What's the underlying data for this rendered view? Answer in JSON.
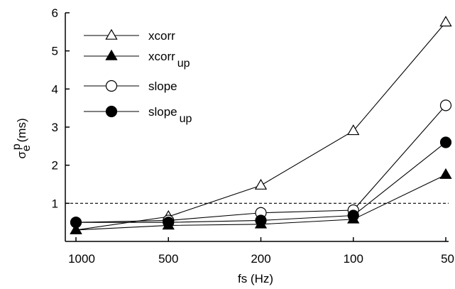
{
  "chart_data": {
    "type": "line",
    "x_axis": {
      "label": "fs (Hz)",
      "tick_labels": [
        "1000",
        "500",
        "200",
        "100",
        "50"
      ]
    },
    "y_axis": {
      "label_main": "σ",
      "label_sub": "e",
      "label_sup": "p",
      "label_unit": "(ms)",
      "tick_labels": [
        "1",
        "2",
        "3",
        "4",
        "5",
        "6"
      ],
      "ylim": [
        0,
        6
      ]
    },
    "x": [
      1000,
      500,
      200,
      100,
      50
    ],
    "reference_line": {
      "y": 1,
      "style": "dashed"
    },
    "legend_position": "top-left",
    "series": [
      {
        "name": "xcorr",
        "name_sub": "",
        "marker": "triangle-open",
        "values": [
          0.3,
          0.65,
          1.47,
          2.9,
          5.75
        ]
      },
      {
        "name": "xcorr",
        "name_sub": "up",
        "marker": "triangle-filled",
        "values": [
          0.3,
          0.42,
          0.45,
          0.58,
          1.75
        ]
      },
      {
        "name": "slope",
        "name_sub": "",
        "marker": "circle-open",
        "values": [
          0.5,
          0.55,
          0.75,
          0.82,
          3.57
        ]
      },
      {
        "name": "slope",
        "name_sub": "up",
        "marker": "circle-filled",
        "values": [
          0.5,
          0.5,
          0.55,
          0.68,
          2.6
        ]
      }
    ]
  }
}
